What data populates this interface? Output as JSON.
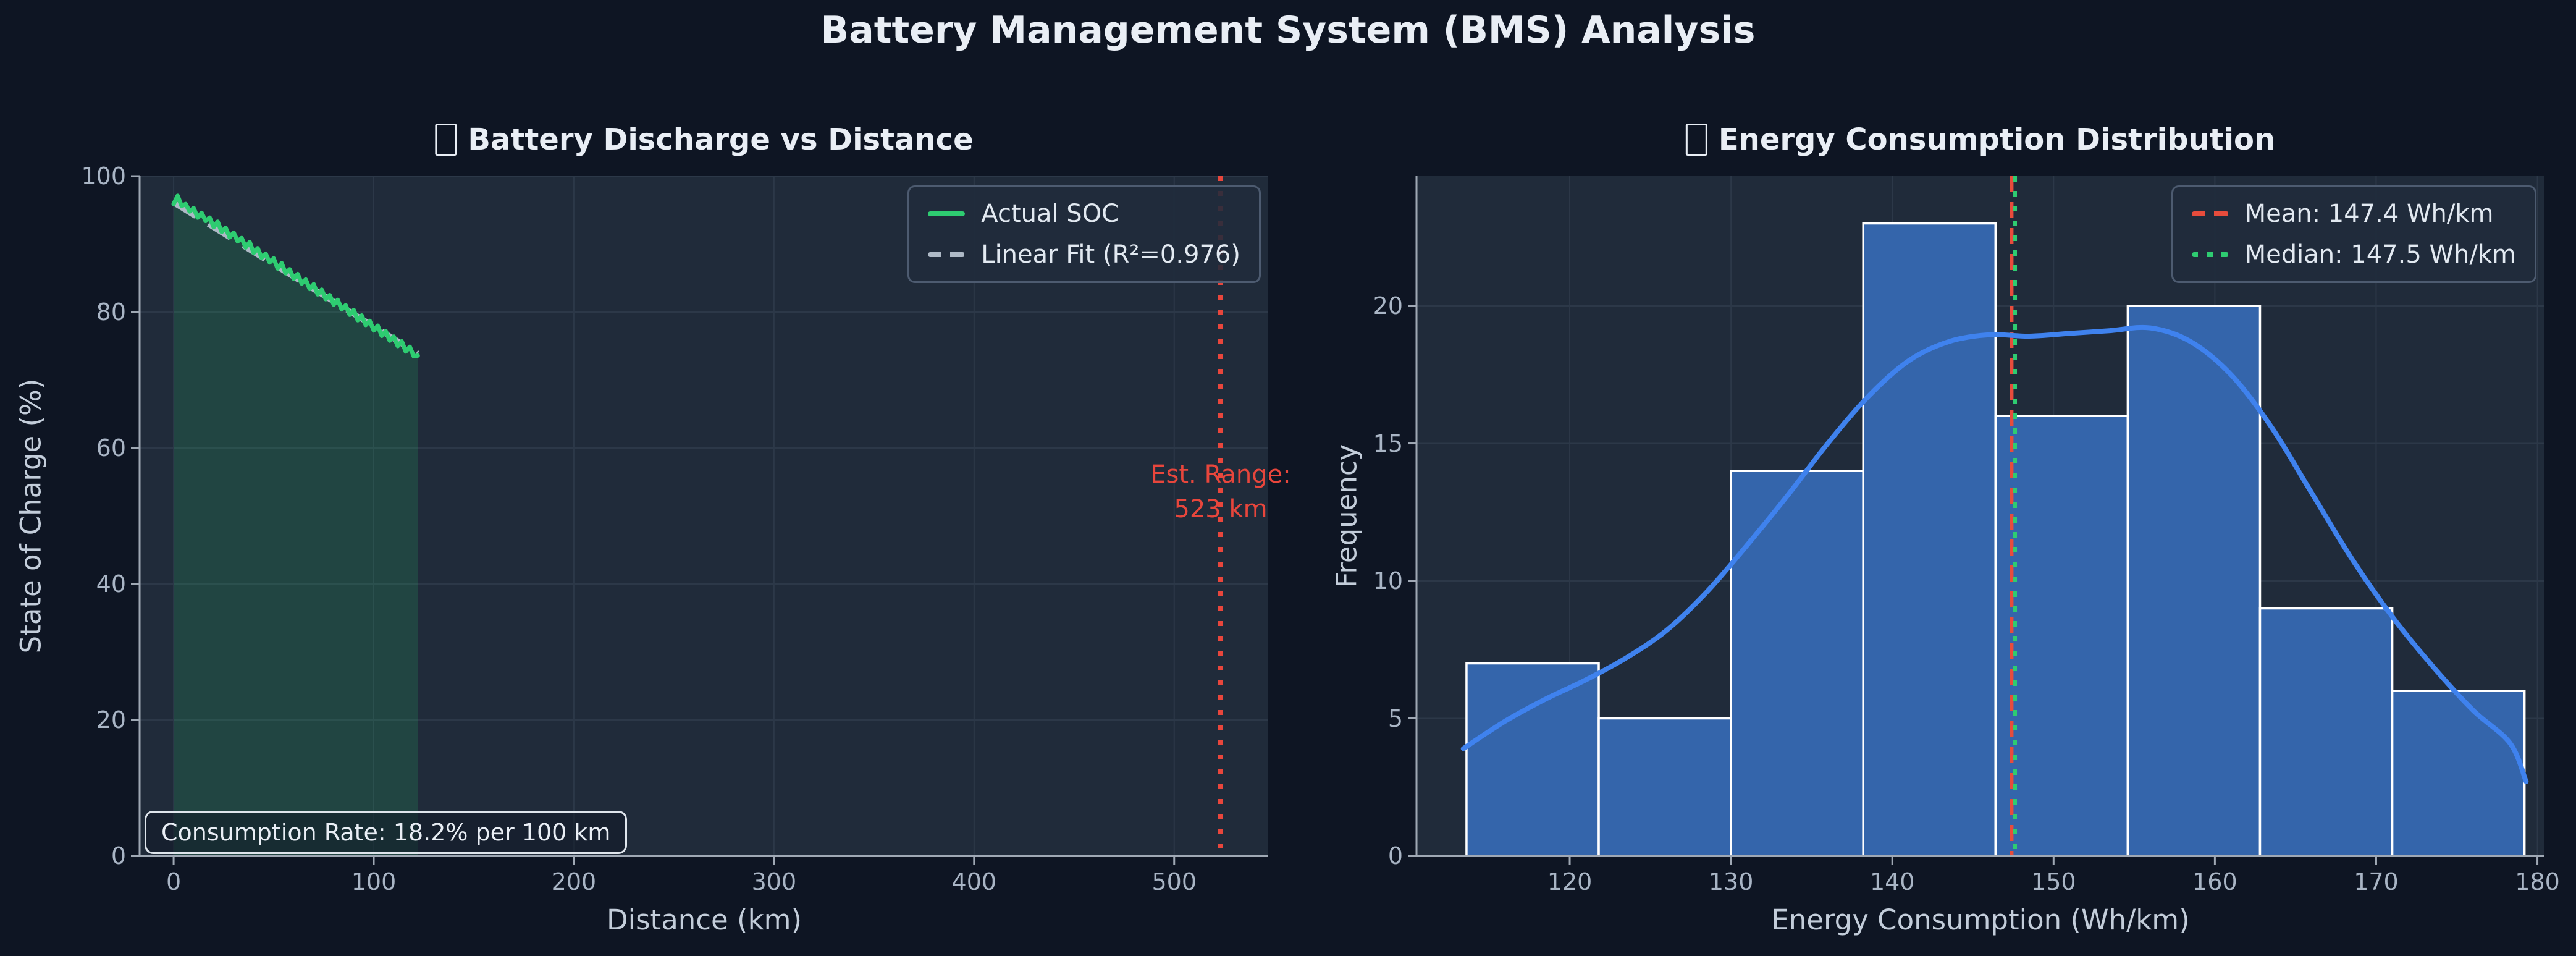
{
  "figure_title": "Battery Management System (BMS) Analysis",
  "colors": {
    "figure_bg": "#0e1523",
    "plot_bg": "#202b3a",
    "grid": "#2c3848",
    "spine": "#9fa8b4",
    "tick_label": "#a9b5c5",
    "axis_label": "#c3cdda",
    "title": "#e9eef5",
    "soc_green": "#2ecc71",
    "soc_fill": "rgba(46,204,113,0.16)",
    "fit_gray": "#aeb9c6",
    "range_red": "#e8463c",
    "bar_blue": "#3465ab",
    "bar_edge": "#ffffff",
    "kde_blue": "#3f82ee",
    "mean_red": "#e74c3c",
    "median_green": "#2ecc71"
  },
  "chart_data": [
    {
      "type": "line",
      "title": "Battery Discharge vs Distance",
      "title_icon": "missing-emoji-box",
      "xlabel": "Distance (km)",
      "ylabel": "State of Charge (%)",
      "xlim": [
        -17,
        547
      ],
      "ylim": [
        0,
        100
      ],
      "xticks": [
        0,
        100,
        200,
        300,
        400,
        500
      ],
      "yticks": [
        0,
        20,
        40,
        60,
        80,
        100
      ],
      "grid": true,
      "legend_position": "upper right",
      "series": [
        {
          "name": "Actual SOC",
          "style": "solid",
          "filled_to_zero": true,
          "x": [
            0,
            2,
            4,
            6,
            8,
            10,
            12,
            14,
            16,
            18,
            20,
            22,
            24,
            26,
            28,
            30,
            32,
            34,
            36,
            38,
            40,
            42,
            44,
            46,
            48,
            50,
            52,
            54,
            56,
            58,
            60,
            62,
            64,
            66,
            68,
            70,
            72,
            74,
            76,
            78,
            80,
            82,
            84,
            86,
            88,
            90,
            92,
            94,
            96,
            98,
            100,
            102,
            104,
            106,
            108,
            110,
            112,
            114,
            116,
            118,
            120,
            122
          ],
          "y": [
            95.9,
            97.1,
            95.6,
            95.9,
            94.8,
            95.3,
            93.9,
            94.6,
            93.4,
            93.9,
            92.5,
            93.3,
            91.8,
            92.4,
            91.0,
            91.7,
            90.4,
            90.9,
            89.5,
            90.3,
            88.7,
            89.4,
            88.0,
            88.6,
            87.3,
            87.9,
            86.4,
            87.2,
            85.7,
            86.3,
            84.9,
            85.6,
            84.2,
            84.8,
            83.4,
            84.1,
            82.6,
            83.3,
            81.9,
            82.5,
            81.1,
            81.8,
            80.4,
            81.0,
            79.6,
            80.3,
            78.8,
            79.5,
            78.1,
            78.7,
            77.3,
            78.0,
            76.5,
            77.2,
            75.8,
            76.4,
            75.0,
            75.7,
            74.2,
            74.9,
            73.5,
            73.6
          ]
        },
        {
          "name": "Linear Fit (R²=0.976)",
          "style": "dashed",
          "x": [
            0,
            122
          ],
          "y": [
            96.1,
            73.9
          ],
          "r_squared": 0.976
        }
      ],
      "legend": [
        {
          "label": "Actual SOC",
          "swatch": "solid-green"
        },
        {
          "label": "Linear Fit (R²=0.976)",
          "swatch": "dashed-gray"
        }
      ],
      "vline": {
        "x": 523,
        "style": "dotted",
        "label_line1": "Est. Range:",
        "label_line2": "523 km"
      },
      "annotation": "Consumption Rate: 18.2% per 100 km"
    },
    {
      "type": "histogram",
      "title": "Energy Consumption Distribution",
      "title_icon": "missing-emoji-box",
      "xlabel": "Energy Consumption (Wh/km)",
      "ylabel": "Frequency",
      "xlim": [
        110.5,
        180.4
      ],
      "ylim": [
        0,
        24.72
      ],
      "xticks": [
        120,
        130,
        140,
        150,
        160,
        170,
        180
      ],
      "yticks": [
        0,
        5,
        10,
        15,
        20
      ],
      "grid": true,
      "legend_position": "upper right",
      "bin_edges": [
        113.6,
        121.8,
        130.0,
        138.2,
        146.4,
        154.6,
        162.8,
        171.0,
        179.2
      ],
      "counts": [
        7,
        5,
        14,
        23,
        16,
        20,
        9,
        6
      ],
      "kde": {
        "x": [
          113.4,
          116,
          118.5,
          121,
          123.5,
          126,
          128.5,
          131,
          133.5,
          136,
          138.5,
          141,
          143.5,
          146,
          148.5,
          151,
          153.5,
          156,
          158.5,
          161,
          163.5,
          166,
          168.5,
          171,
          173.5,
          176,
          178.3,
          179.3
        ],
        "y": [
          3.9,
          4.9,
          5.7,
          6.4,
          7.2,
          8.2,
          9.6,
          11.3,
          13.1,
          15.0,
          16.7,
          18.0,
          18.7,
          18.95,
          18.9,
          19.0,
          19.1,
          19.2,
          18.7,
          17.5,
          15.6,
          13.2,
          10.8,
          8.7,
          6.9,
          5.3,
          4.1,
          2.7
        ]
      },
      "mean": {
        "value": 147.4,
        "label": "Mean: 147.4 Wh/km",
        "style": "dashed"
      },
      "median": {
        "value": 147.5,
        "label": "Median: 147.5 Wh/km",
        "style": "dotted"
      },
      "legend": [
        {
          "label": "Mean: 147.4 Wh/km",
          "swatch": "dashed-red"
        },
        {
          "label": "Median: 147.5 Wh/km",
          "swatch": "dotted-green"
        }
      ]
    }
  ]
}
